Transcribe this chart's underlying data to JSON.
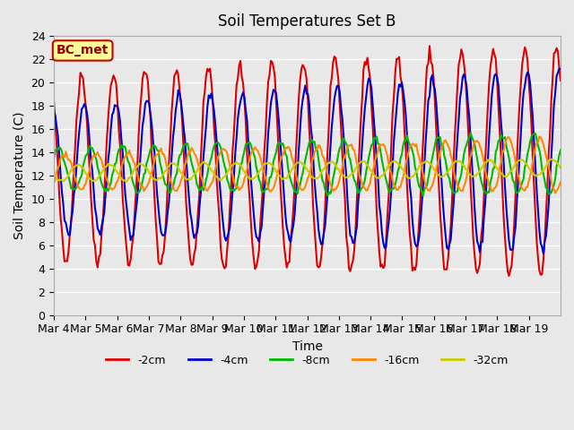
{
  "title": "Soil Temperatures Set B",
  "xlabel": "Time",
  "ylabel": "Soil Temperature (C)",
  "ylim": [
    0,
    24
  ],
  "n_days": 16,
  "background_color": "#e8e8e8",
  "plot_bg_color": "#e8e8e8",
  "grid_color": "white",
  "annotation_text": "BC_met",
  "annotation_bg": "#ffff99",
  "annotation_border": "#cc0000",
  "annotation_text_color": "#990000",
  "xtick_labels": [
    "Mar 4",
    "Mar 5",
    "Mar 6",
    "Mar 7",
    "Mar 8",
    "Mar 9",
    "Mar 10",
    "Mar 11",
    "Mar 12",
    "Mar 13",
    "Mar 14",
    "Mar 15",
    "Mar 16",
    "Mar 17",
    "Mar 18",
    "Mar 19"
  ],
  "series": {
    "-2cm": {
      "color": "#dd0000",
      "lw": 1.5
    },
    "-4cm": {
      "color": "#0000cc",
      "lw": 1.5
    },
    "-8cm": {
      "color": "#00bb00",
      "lw": 1.5
    },
    "-16cm": {
      "color": "#ff8800",
      "lw": 1.5
    },
    "-32cm": {
      "color": "#cccc00",
      "lw": 1.5
    }
  },
  "legend_order": [
    "-2cm",
    "-4cm",
    "-8cm",
    "-16cm",
    "-32cm"
  ]
}
